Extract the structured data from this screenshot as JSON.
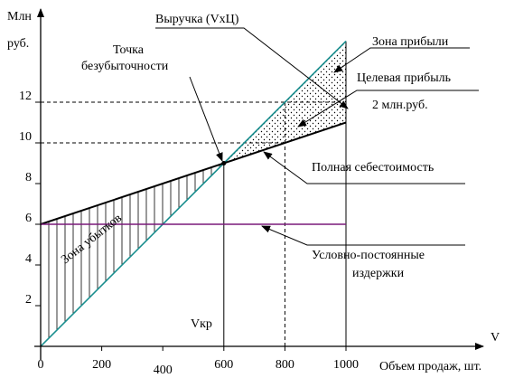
{
  "chart_data": {
    "type": "line",
    "y_axis_label_line1": "Млн",
    "y_axis_label_line2": "руб.",
    "x_axis_symbol": "V",
    "x_axis_label": "Объем продаж, шт.",
    "xlim": [
      0,
      1000
    ],
    "ylim": [
      0,
      15
    ],
    "x_ticks": [
      0,
      200,
      400,
      600,
      800,
      1000
    ],
    "x_tick_labels": [
      "0",
      "200",
      "400",
      "600",
      "800",
      "1000"
    ],
    "y_ticks": [
      2,
      4,
      6,
      8,
      10,
      12
    ],
    "y_tick_labels": [
      "2",
      "4",
      "6",
      "8",
      "10",
      "12"
    ],
    "series": [
      {
        "name": "Выручка (VxЦ)",
        "color": "#1a8f8f",
        "x": [
          0,
          1000
        ],
        "y": [
          0,
          15
        ]
      },
      {
        "name": "Полная себестоимость",
        "color": "#000000",
        "x": [
          0,
          1000
        ],
        "y": [
          6,
          11
        ]
      },
      {
        "name": "Условно-постоянные издержки",
        "color": "#7a1a7a",
        "x": [
          0,
          1000
        ],
        "y": [
          6,
          6
        ]
      }
    ],
    "break_even": {
      "x": 600,
      "y": 9
    },
    "target_volume": 800,
    "guide_levels": [
      10,
      12
    ],
    "annotations": {
      "revenue": "Выручка (VxЦ)",
      "profit_zone": "Зона прибыли",
      "break_even_line1": "Точка",
      "break_even_line2": "безубыточности",
      "target_profit_line1": "Целевая прибыль",
      "target_profit_line2": "2 млн.руб.",
      "total_cost": "Полная себестоимость",
      "fixed_costs_line1": "Условно-постоянные",
      "fixed_costs_line2": "издержки",
      "loss_zone": "Зона убытков",
      "critical_volume": "Vкр"
    }
  }
}
